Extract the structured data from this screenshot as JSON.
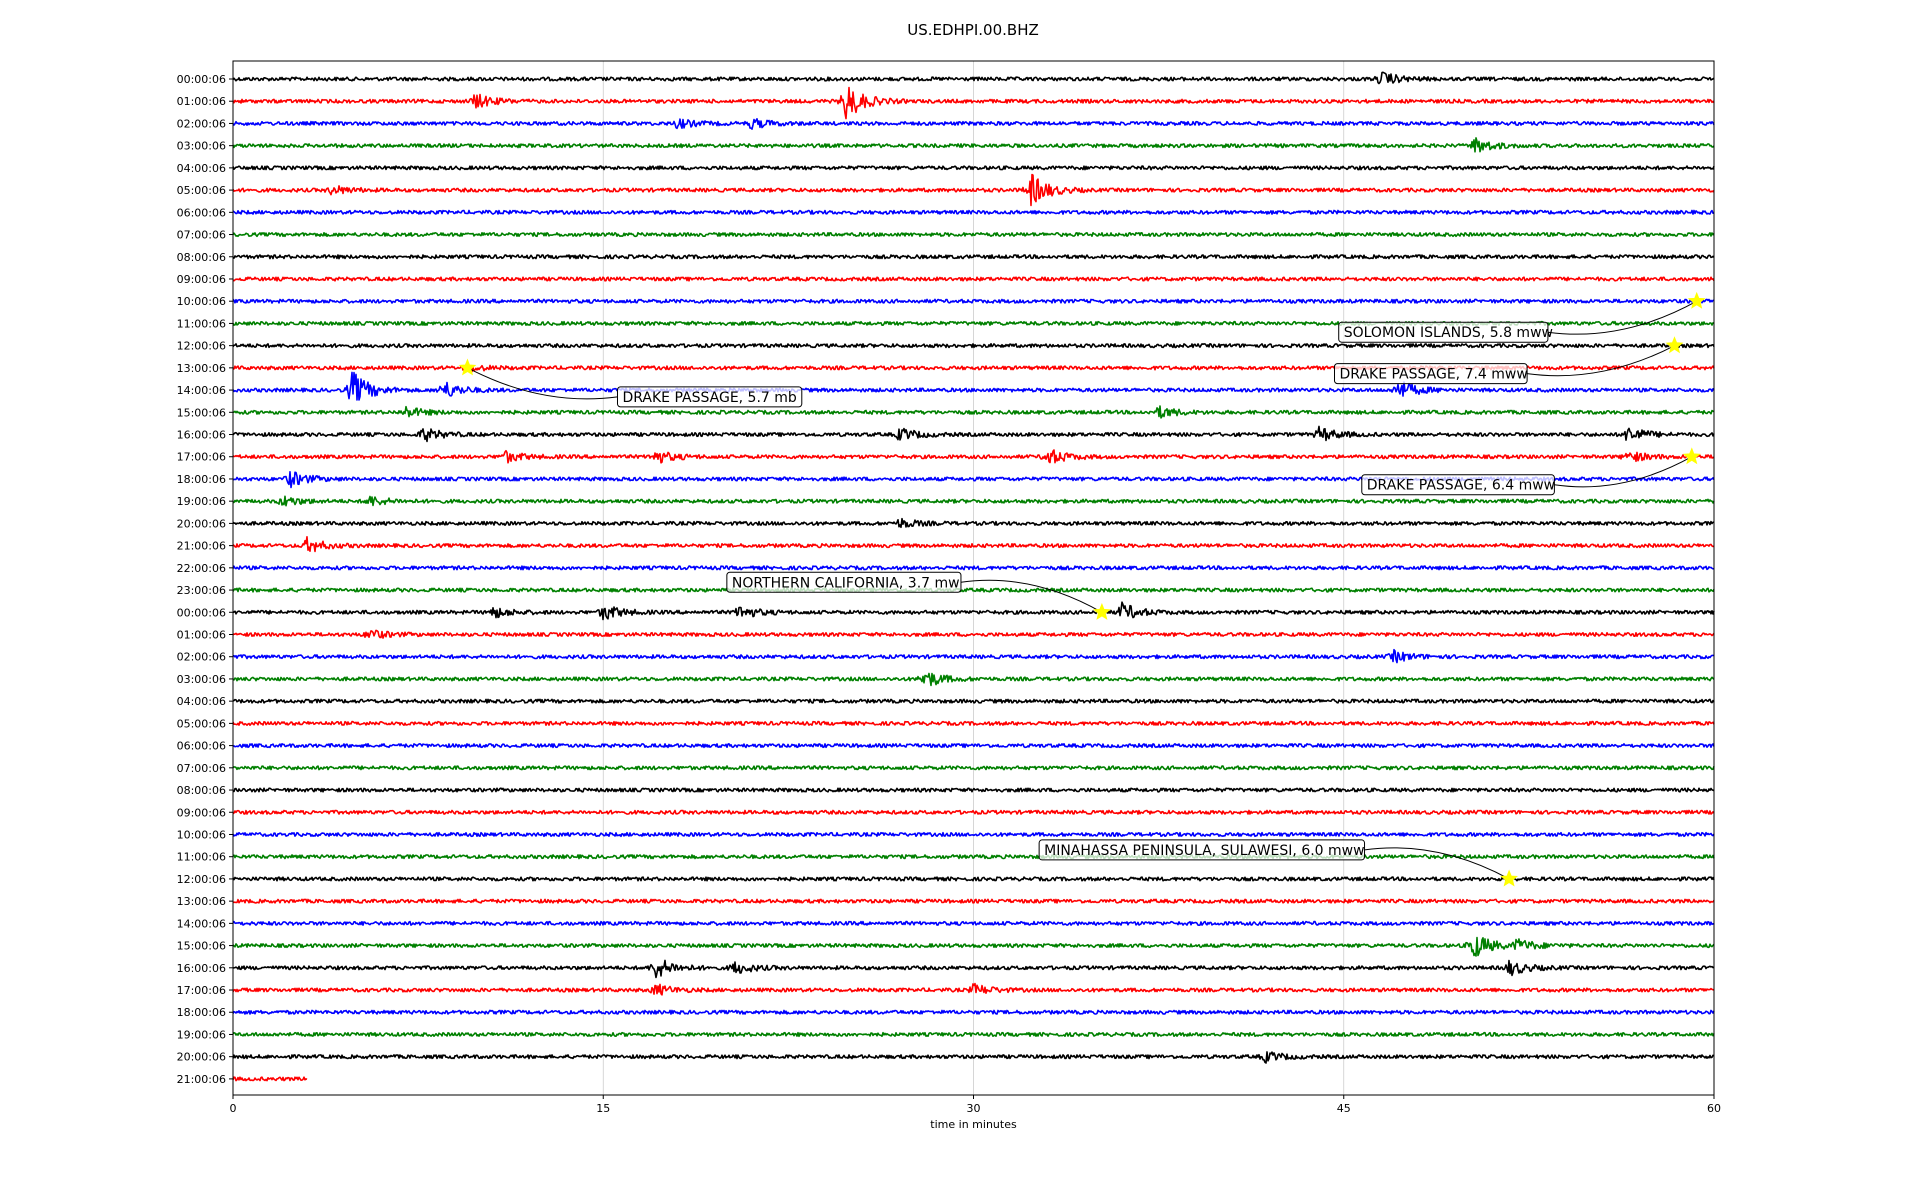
{
  "chart_data": {
    "type": "line",
    "title": "US.EDHPI.00.BHZ",
    "xlabel": "time in minutes",
    "ylabel": "",
    "xlim": [
      0,
      60
    ],
    "xticks": [
      0,
      15,
      30,
      45,
      60
    ],
    "grid": "vertical",
    "colors": [
      "#000000",
      "#ff0000",
      "#0000ff",
      "#008000"
    ],
    "row_labels": [
      "00:00:06",
      "01:00:06",
      "02:00:06",
      "03:00:06",
      "04:00:06",
      "05:00:06",
      "06:00:06",
      "07:00:06",
      "08:00:06",
      "09:00:06",
      "10:00:06",
      "11:00:06",
      "12:00:06",
      "13:00:06",
      "14:00:06",
      "15:00:06",
      "16:00:06",
      "17:00:06",
      "18:00:06",
      "19:00:06",
      "20:00:06",
      "21:00:06",
      "22:00:06",
      "23:00:06",
      "00:00:06",
      "01:00:06",
      "02:00:06",
      "03:00:06",
      "04:00:06",
      "05:00:06",
      "06:00:06",
      "07:00:06",
      "08:00:06",
      "09:00:06",
      "10:00:06",
      "11:00:06",
      "12:00:06",
      "13:00:06",
      "14:00:06",
      "15:00:06",
      "16:00:06",
      "17:00:06",
      "18:00:06",
      "19:00:06",
      "20:00:06",
      "21:00:06"
    ],
    "last_row_end_minute": 3,
    "bursts": [
      {
        "row": 0,
        "minute": 46.5,
        "amp": 1.2
      },
      {
        "row": 1,
        "minute": 9.8,
        "amp": 1.3
      },
      {
        "row": 1,
        "minute": 24.8,
        "amp": 3.5
      },
      {
        "row": 2,
        "minute": 18,
        "amp": 0.8
      },
      {
        "row": 2,
        "minute": 21,
        "amp": 0.9
      },
      {
        "row": 3,
        "minute": 50.3,
        "amp": 1.4
      },
      {
        "row": 5,
        "minute": 4,
        "amp": 0.8
      },
      {
        "row": 5,
        "minute": 32.3,
        "amp": 3.0
      },
      {
        "row": 13,
        "minute": 9.5,
        "amp": 0.6
      },
      {
        "row": 14,
        "minute": 4.8,
        "amp": 3.4
      },
      {
        "row": 14,
        "minute": 8.5,
        "amp": 1.6
      },
      {
        "row": 14,
        "minute": 47.2,
        "amp": 1.8
      },
      {
        "row": 15,
        "minute": 7,
        "amp": 0.9
      },
      {
        "row": 15,
        "minute": 37.5,
        "amp": 1.0
      },
      {
        "row": 16,
        "minute": 7.7,
        "amp": 1.2
      },
      {
        "row": 16,
        "minute": 27,
        "amp": 1.1
      },
      {
        "row": 16,
        "minute": 44,
        "amp": 1.3
      },
      {
        "row": 16,
        "minute": 56.5,
        "amp": 1.5
      },
      {
        "row": 17,
        "minute": 11,
        "amp": 1.0
      },
      {
        "row": 17,
        "minute": 17.1,
        "amp": 1.2
      },
      {
        "row": 17,
        "minute": 33,
        "amp": 1.5
      },
      {
        "row": 17,
        "minute": 56.5,
        "amp": 1.0
      },
      {
        "row": 18,
        "minute": 2.3,
        "amp": 1.4
      },
      {
        "row": 19,
        "minute": 2,
        "amp": 0.9
      },
      {
        "row": 19,
        "minute": 5.5,
        "amp": 0.9
      },
      {
        "row": 20,
        "minute": 27,
        "amp": 0.8
      },
      {
        "row": 21,
        "minute": 3,
        "amp": 1.3
      },
      {
        "row": 24,
        "minute": 10.5,
        "amp": 1.0
      },
      {
        "row": 24,
        "minute": 15,
        "amp": 1.4
      },
      {
        "row": 24,
        "minute": 20.5,
        "amp": 1.2
      },
      {
        "row": 24,
        "minute": 36,
        "amp": 1.6
      },
      {
        "row": 25,
        "minute": 5.5,
        "amp": 0.9
      },
      {
        "row": 26,
        "minute": 47,
        "amp": 1.0
      },
      {
        "row": 27,
        "minute": 28,
        "amp": 1.6
      },
      {
        "row": 39,
        "minute": 50.2,
        "amp": 2.5
      },
      {
        "row": 39,
        "minute": 52,
        "amp": 1.2
      },
      {
        "row": 40,
        "minute": 17.1,
        "amp": 2.0
      },
      {
        "row": 40,
        "minute": 20.3,
        "amp": 1.1
      },
      {
        "row": 40,
        "minute": 51.7,
        "amp": 1.3
      },
      {
        "row": 41,
        "minute": 17.1,
        "amp": 1.0
      },
      {
        "row": 41,
        "minute": 30,
        "amp": 1.0
      },
      {
        "row": 44,
        "minute": 41.8,
        "amp": 0.9
      }
    ],
    "annotations": [
      {
        "text": "SOLOMON ISLANDS, 5.8 mww",
        "row": 10,
        "minute": 59.3,
        "label_color": "#ffffff"
      },
      {
        "text": "DRAKE PASSAGE, 7.4 mww",
        "row": 12,
        "minute": 58.4,
        "label_color": "#ffffff"
      },
      {
        "text": "DRAKE PASSAGE, 5.7 mb",
        "row": 13,
        "minute": 9.5,
        "label_color": "#ffffff"
      },
      {
        "text": "DRAKE PASSAGE, 6.4 mww",
        "row": 17,
        "minute": 59.1,
        "label_color": "#ffffff"
      },
      {
        "text": "NORTHERN CALIFORNIA, 3.7 mw",
        "row": 24,
        "minute": 35.2,
        "label_color": "#ffffff"
      },
      {
        "text": "MINAHASSA PENINSULA, SULAWESI, 6.0 mww",
        "row": 36,
        "minute": 51.7,
        "label_color": "#ffffff"
      }
    ]
  }
}
